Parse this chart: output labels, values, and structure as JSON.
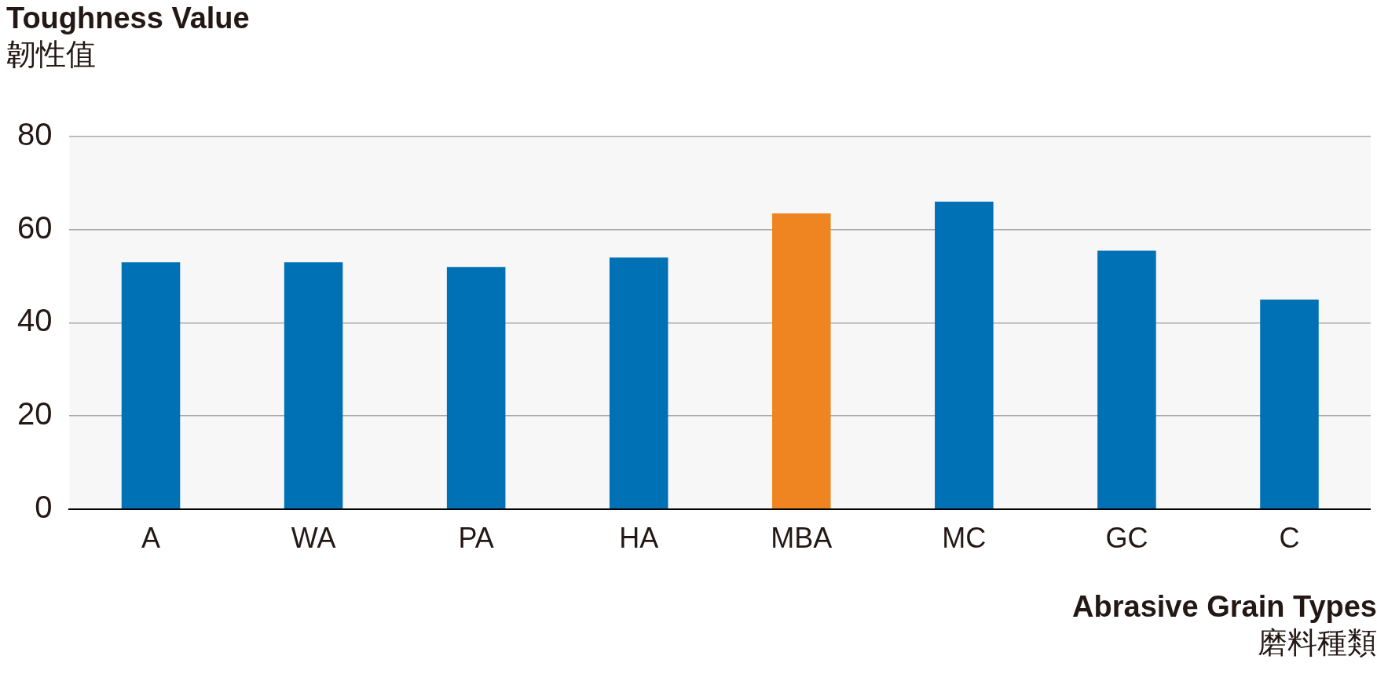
{
  "chart_data": {
    "type": "bar",
    "ylabel": "Toughness Value\n韌性值",
    "xlabel": "Abrasive Grain Types\n磨料種類",
    "categories": [
      "A",
      "WA",
      "PA",
      "HA",
      "MBA",
      "MC",
      "GC",
      "C"
    ],
    "values": [
      53,
      53,
      52,
      54,
      63.5,
      66,
      55.5,
      45
    ],
    "colors": [
      "#0071b5",
      "#0071b5",
      "#0071b5",
      "#0071b5",
      "#ee8520",
      "#0071b5",
      "#0071b5",
      "#0071b5"
    ],
    "ylim": [
      0,
      80
    ],
    "yticks": [
      0,
      20,
      40,
      60,
      80
    ],
    "grid": "y",
    "legend": false
  }
}
